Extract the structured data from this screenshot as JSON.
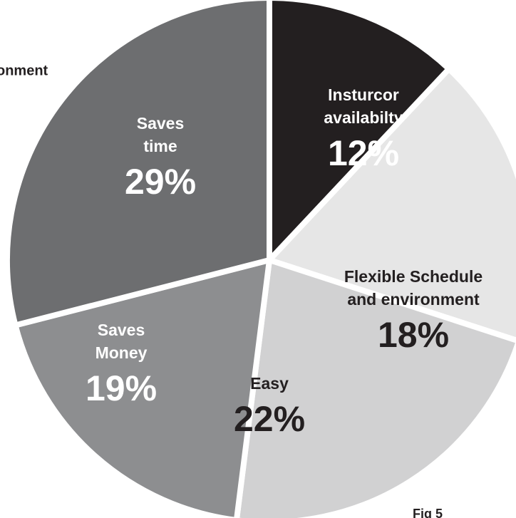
{
  "chart_data": {
    "type": "pie",
    "categories": [
      [
        "Insturcor",
        "availabilty"
      ],
      [
        "Flexible Schedule",
        "and environment"
      ],
      [
        "Easy"
      ],
      [
        "Saves",
        "Money"
      ],
      [
        "Saves",
        "time"
      ]
    ],
    "values": [
      12,
      18,
      22,
      19,
      29
    ],
    "value_labels": [
      "12%",
      "18%",
      "22%",
      "19%",
      "29%"
    ],
    "colors": [
      "#231f20",
      "#e6e6e6",
      "#d1d1d2",
      "#8d8e90",
      "#6d6e70"
    ],
    "annotations": [
      "onment",
      "Fig 5"
    ]
  }
}
